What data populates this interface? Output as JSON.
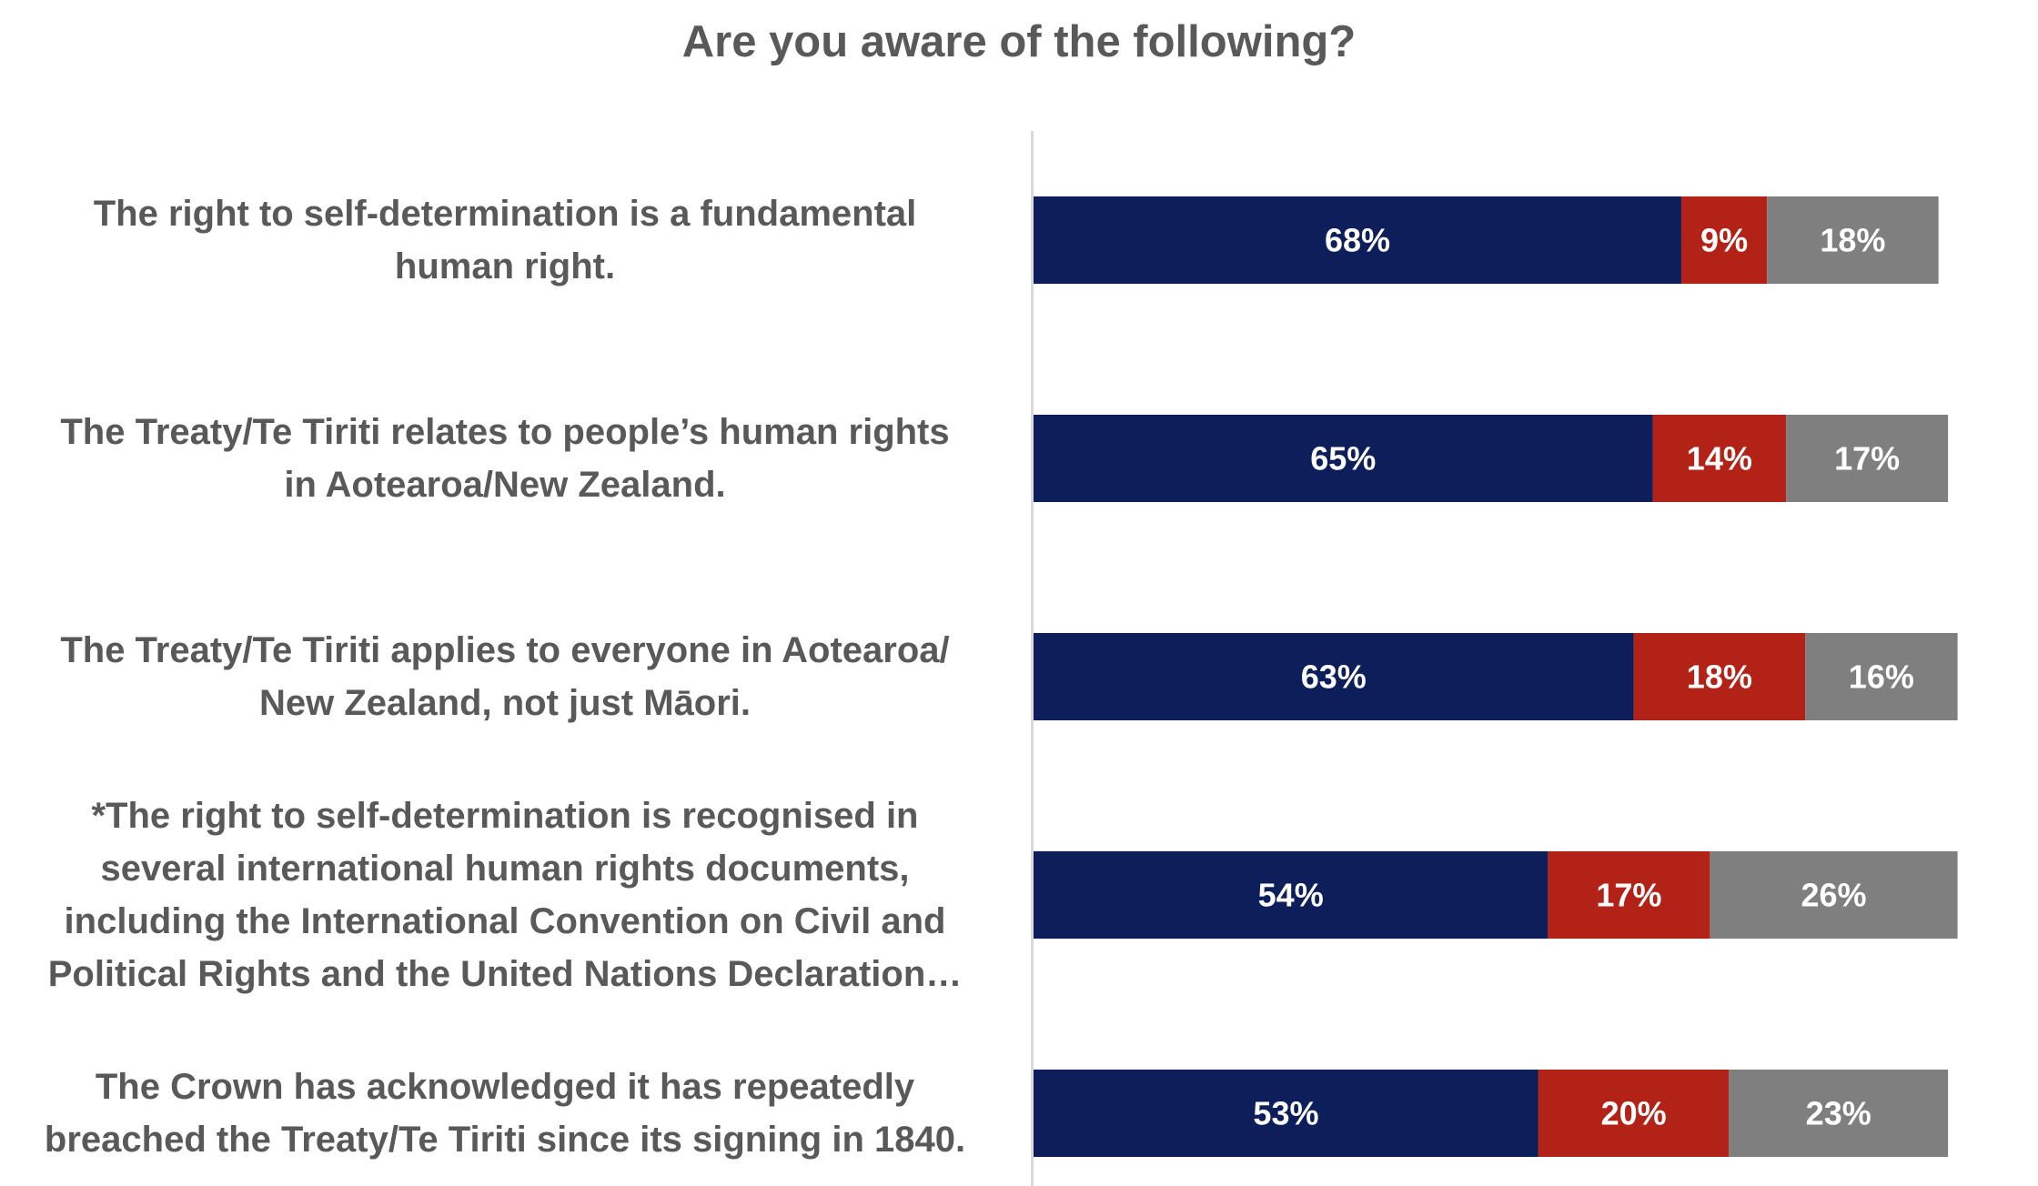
{
  "chart_data": {
    "type": "bar",
    "orientation": "horizontal",
    "stacked": true,
    "title": "Are you aware of the following?",
    "categories": [
      "The right to self-determination is a fundamental human right.",
      "The Treaty/Te Tiriti relates to people’s human rights in Aotearoa/New Zealand.",
      "The Treaty/Te Tiriti applies to everyone in Aotearoa/ New Zealand, not just Māori.",
      "*The right to self-determination is recognised in several international human rights documents, including the International Convention on Civil and Political Rights and the United Nations Declaration…",
      "The Crown has acknowledged it has repeatedly breached the Treaty/Te Tiriti since its signing in 1840."
    ],
    "category_lines": [
      [
        "The right to self-determination is a fundamental",
        "human right."
      ],
      [
        "The Treaty/Te Tiriti relates to people’s human rights",
        "in Aotearoa/New Zealand."
      ],
      [
        "The Treaty/Te Tiriti applies to everyone in Aotearoa/",
        "New Zealand, not just Māori."
      ],
      [
        "*The right to self-determination is recognised in",
        "several international human rights documents,",
        "including the International Convention on Civil and",
        "Political Rights and the United Nations Declaration…"
      ],
      [
        "The Crown has acknowledged it has repeatedly",
        "breached the Treaty/Te Tiriti since its signing in 1840."
      ]
    ],
    "series": [
      {
        "values": [
          68,
          65,
          63,
          54,
          53
        ],
        "color": "#0c1f5b"
      },
      {
        "values": [
          9,
          14,
          18,
          17,
          20
        ],
        "color": "#b22217"
      },
      {
        "values": [
          18,
          17,
          16,
          26,
          23
        ],
        "color": "#7f7f7f"
      }
    ],
    "value_suffix": "%",
    "xlim": [
      0,
      100
    ],
    "legend": "none",
    "grid": false
  }
}
